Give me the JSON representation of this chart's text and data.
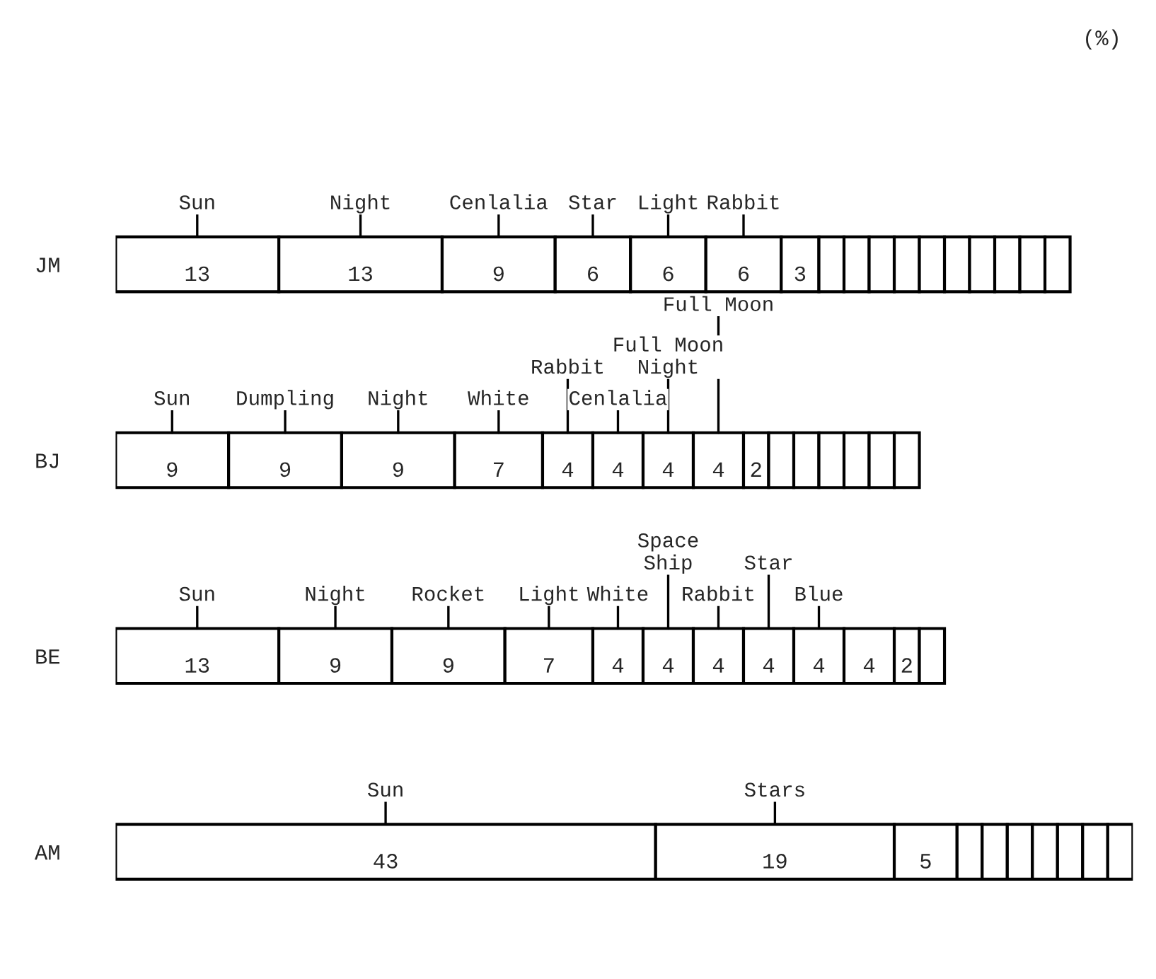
{
  "chart_data": {
    "type": "bar",
    "orientation": "horizontal",
    "stacked": true,
    "tick_labels": "y",
    "grid": false,
    "legend": false,
    "categories": [
      "JM",
      "BJ",
      "BE",
      "AM"
    ],
    "annotations": [
      "(%)"
    ],
    "series": [
      {
        "name": "Sun",
        "color": "#ffffff",
        "values": [
          13,
          null,
          null,
          null
        ],
        "value_labels": [
          "13",
          null,
          null,
          null
        ]
      },
      {
        "name": "Night",
        "color": "#ffffff",
        "values": [
          13,
          null,
          null,
          null
        ],
        "value_labels": [
          "13",
          null,
          null,
          null
        ]
      },
      {
        "name": "Cenlalia",
        "color": "#ffffff",
        "values": [
          9,
          null,
          null,
          null
        ],
        "value_labels": [
          "9",
          null,
          null,
          null
        ]
      },
      {
        "name": "Star",
        "color": "#ffffff",
        "values": [
          6,
          null,
          null,
          null
        ],
        "value_labels": [
          "6",
          null,
          null,
          null
        ]
      },
      {
        "name": "Light",
        "color": "#ffffff",
        "values": [
          6,
          null,
          null,
          null
        ],
        "value_labels": [
          "6",
          null,
          null,
          null
        ]
      },
      {
        "name": "Rabbit",
        "color": "#ffffff",
        "values": [
          6,
          null,
          null,
          null
        ],
        "value_labels": [
          "6",
          null,
          null,
          null
        ]
      },
      {
        "color": "#ffffff",
        "values": [
          3,
          null,
          null,
          null
        ],
        "value_labels": [
          "3",
          null,
          null,
          null
        ]
      },
      {
        "color": "#ffffff",
        "values": [
          2,
          null,
          null,
          null
        ],
        "value_labels": [
          null,
          null,
          null,
          null
        ]
      },
      {
        "color": "#ffffff",
        "values": [
          2,
          null,
          null,
          null
        ],
        "value_labels": [
          null,
          null,
          null,
          null
        ]
      },
      {
        "color": "#ffffff",
        "values": [
          2,
          null,
          null,
          null
        ],
        "value_labels": [
          null,
          null,
          null,
          null
        ]
      },
      {
        "color": "#ffffff",
        "values": [
          2,
          null,
          null,
          null
        ],
        "value_labels": [
          null,
          null,
          null,
          null
        ]
      },
      {
        "color": "#ffffff",
        "values": [
          2,
          null,
          null,
          null
        ],
        "value_labels": [
          null,
          null,
          null,
          null
        ]
      },
      {
        "color": "#ffffff",
        "values": [
          2,
          null,
          null,
          null
        ],
        "value_labels": [
          null,
          null,
          null,
          null
        ]
      },
      {
        "color": "#ffffff",
        "values": [
          2,
          null,
          null,
          null
        ],
        "value_labels": [
          null,
          null,
          null,
          null
        ]
      },
      {
        "color": "#ffffff",
        "values": [
          2,
          null,
          null,
          null
        ],
        "value_labels": [
          null,
          null,
          null,
          null
        ]
      },
      {
        "color": "#ffffff",
        "values": [
          2,
          null,
          null,
          null
        ],
        "value_labels": [
          null,
          null,
          null,
          null
        ]
      },
      {
        "color": "#ffffff",
        "values": [
          2,
          null,
          null,
          null
        ],
        "value_labels": [
          null,
          null,
          null,
          null
        ]
      },
      {
        "name": "Sun",
        "color": "#ffffff",
        "values": [
          null,
          9,
          null,
          null
        ],
        "value_labels": [
          null,
          "9",
          null,
          null
        ]
      },
      {
        "name": "Dumpling",
        "color": "#ffffff",
        "values": [
          null,
          9,
          null,
          null
        ],
        "value_labels": [
          null,
          "9",
          null,
          null
        ]
      },
      {
        "name": "Night",
        "color": "#ffffff",
        "values": [
          null,
          9,
          null,
          null
        ],
        "value_labels": [
          null,
          "9",
          null,
          null
        ]
      },
      {
        "name": "White",
        "color": "#ffffff",
        "values": [
          null,
          7,
          null,
          null
        ],
        "value_labels": [
          null,
          "7",
          null,
          null
        ]
      },
      {
        "name": "Rabbit",
        "color": "#ffffff",
        "values": [
          null,
          4,
          null,
          null
        ],
        "value_labels": [
          null,
          "4",
          null,
          null
        ]
      },
      {
        "name": "Cenlalia",
        "color": "#ffffff",
        "values": [
          null,
          4,
          null,
          null
        ],
        "value_labels": [
          null,
          "4",
          null,
          null
        ]
      },
      {
        "name": "Full Moon\nNight",
        "color": "#ffffff",
        "values": [
          null,
          4,
          null,
          null
        ],
        "value_labels": [
          null,
          "4",
          null,
          null
        ]
      },
      {
        "name": "Full Moon",
        "color": "#ffffff",
        "values": [
          null,
          4,
          null,
          null
        ],
        "value_labels": [
          null,
          "4",
          null,
          null
        ]
      },
      {
        "color": "#ffffff",
        "values": [
          null,
          2,
          null,
          null
        ],
        "value_labels": [
          null,
          "2",
          null,
          null
        ]
      },
      {
        "color": "#ffffff",
        "values": [
          null,
          2,
          null,
          null
        ],
        "value_labels": [
          null,
          null,
          null,
          null
        ]
      },
      {
        "color": "#ffffff",
        "values": [
          null,
          2,
          null,
          null
        ],
        "value_labels": [
          null,
          null,
          null,
          null
        ]
      },
      {
        "color": "#ffffff",
        "values": [
          null,
          2,
          null,
          null
        ],
        "value_labels": [
          null,
          null,
          null,
          null
        ]
      },
      {
        "color": "#ffffff",
        "values": [
          null,
          2,
          null,
          null
        ],
        "value_labels": [
          null,
          null,
          null,
          null
        ]
      },
      {
        "color": "#ffffff",
        "values": [
          null,
          2,
          null,
          null
        ],
        "value_labels": [
          null,
          null,
          null,
          null
        ]
      },
      {
        "color": "#ffffff",
        "values": [
          null,
          2,
          null,
          null
        ],
        "value_labels": [
          null,
          null,
          null,
          null
        ]
      },
      {
        "name": "Sun",
        "color": "#ffffff",
        "values": [
          null,
          null,
          13,
          null
        ],
        "value_labels": [
          null,
          null,
          "13",
          null
        ]
      },
      {
        "name": "Night",
        "color": "#ffffff",
        "values": [
          null,
          null,
          9,
          null
        ],
        "value_labels": [
          null,
          null,
          "9",
          null
        ]
      },
      {
        "name": "Rocket",
        "color": "#ffffff",
        "values": [
          null,
          null,
          9,
          null
        ],
        "value_labels": [
          null,
          null,
          "9",
          null
        ]
      },
      {
        "name": "Light",
        "color": "#ffffff",
        "values": [
          null,
          null,
          7,
          null
        ],
        "value_labels": [
          null,
          null,
          "7",
          null
        ]
      },
      {
        "name": "White",
        "color": "#ffffff",
        "values": [
          null,
          null,
          4,
          null
        ],
        "value_labels": [
          null,
          null,
          "4",
          null
        ]
      },
      {
        "name": "Space\nShip",
        "color": "#ffffff",
        "values": [
          null,
          null,
          4,
          null
        ],
        "value_labels": [
          null,
          null,
          "4",
          null
        ]
      },
      {
        "name": "Rabbit",
        "color": "#ffffff",
        "values": [
          null,
          null,
          4,
          null
        ],
        "value_labels": [
          null,
          null,
          "4",
          null
        ]
      },
      {
        "name": "Star",
        "color": "#ffffff",
        "values": [
          null,
          null,
          4,
          null
        ],
        "value_labels": [
          null,
          null,
          "4",
          null
        ]
      },
      {
        "name": "Blue",
        "color": "#ffffff",
        "values": [
          null,
          null,
          4,
          null
        ],
        "value_labels": [
          null,
          null,
          "4",
          null
        ]
      },
      {
        "color": "#ffffff",
        "values": [
          null,
          null,
          4,
          null
        ],
        "value_labels": [
          null,
          null,
          "4",
          null
        ]
      },
      {
        "color": "#ffffff",
        "values": [
          null,
          null,
          2,
          null
        ],
        "value_labels": [
          null,
          null,
          "2",
          null
        ]
      },
      {
        "color": "#ffffff",
        "values": [
          null,
          null,
          2,
          null
        ],
        "value_labels": [
          null,
          null,
          null,
          null
        ]
      },
      {
        "name": "Sun",
        "color": "#ffffff",
        "values": [
          null,
          null,
          null,
          43
        ],
        "value_labels": [
          null,
          null,
          null,
          "43"
        ]
      },
      {
        "name": "Stars",
        "color": "#ffffff",
        "values": [
          null,
          null,
          null,
          19
        ],
        "value_labels": [
          null,
          null,
          null,
          "19"
        ]
      },
      {
        "color": "#ffffff",
        "values": [
          null,
          null,
          null,
          5
        ],
        "value_labels": [
          null,
          null,
          null,
          "5"
        ]
      },
      {
        "color": "#ffffff",
        "values": [
          null,
          null,
          null,
          2
        ],
        "value_labels": [
          null,
          null,
          null,
          null
        ]
      },
      {
        "color": "#ffffff",
        "values": [
          null,
          null,
          null,
          2
        ],
        "value_labels": [
          null,
          null,
          null,
          null
        ]
      },
      {
        "color": "#ffffff",
        "values": [
          null,
          null,
          null,
          2
        ],
        "value_labels": [
          null,
          null,
          null,
          null
        ]
      },
      {
        "color": "#ffffff",
        "values": [
          null,
          null,
          null,
          2
        ],
        "value_labels": [
          null,
          null,
          null,
          null
        ]
      },
      {
        "color": "#ffffff",
        "values": [
          null,
          null,
          null,
          2
        ],
        "value_labels": [
          null,
          null,
          null,
          null
        ]
      },
      {
        "color": "#ffffff",
        "values": [
          null,
          null,
          null,
          2
        ],
        "value_labels": [
          null,
          null,
          null,
          null
        ]
      },
      {
        "color": "#ffffff",
        "values": [
          null,
          null,
          null,
          2
        ],
        "value_labels": [
          null,
          null,
          null,
          null
        ]
      }
    ]
  }
}
